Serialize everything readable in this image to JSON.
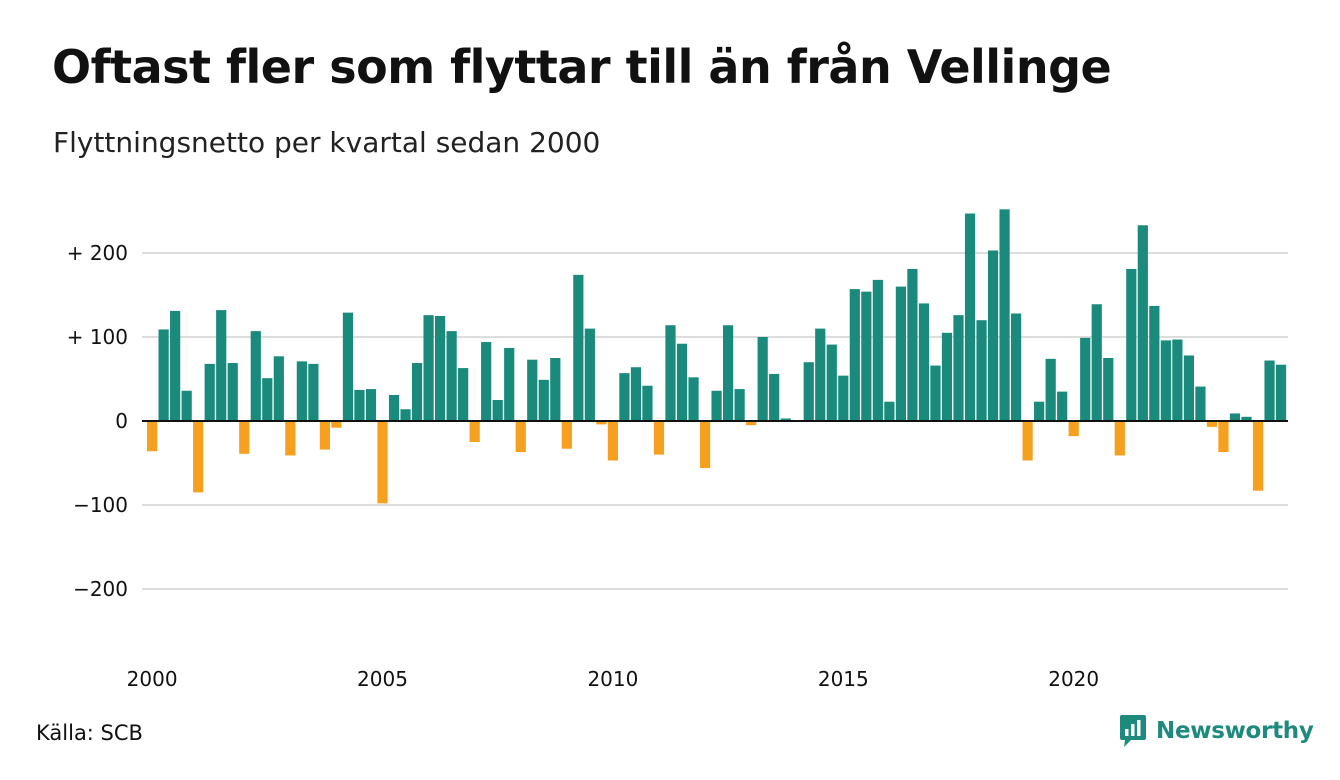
{
  "title": "Oftast fler som flyttar till än från Vellinge",
  "subtitle": "Flyttningsnetto per kvartal sedan 2000",
  "source": "Källa: SCB",
  "brand": {
    "name": "Newsworthy",
    "icon": "newsworthy-logo-icon"
  },
  "colors": {
    "positive": "#1a8a7c",
    "negative": "#f5a01e",
    "grid": "#dddddd",
    "baseline": "#111111",
    "brand": "#1e8a7e"
  },
  "chart_data": {
    "type": "bar",
    "title": "Oftast fler som flyttar till än från Vellinge",
    "subtitle": "Flyttningsnetto per kvartal sedan 2000",
    "x_start_year": 2000,
    "periods_per_year": 4,
    "x_ticks": [
      "2000",
      "2005",
      "2010",
      "2015",
      "2020"
    ],
    "y_ticks": [
      {
        "value": 200,
        "label": "+ 200"
      },
      {
        "value": 100,
        "label": "+ 100"
      },
      {
        "value": 0,
        "label": "0"
      },
      {
        "value": -100,
        "label": "−100"
      },
      {
        "value": -200,
        "label": "−200"
      }
    ],
    "ylim": [
      -280,
      260
    ],
    "grid": true,
    "values": [
      -36,
      109,
      131,
      36,
      -85,
      68,
      132,
      69,
      -39,
      107,
      51,
      77,
      -41,
      71,
      68,
      -34,
      -8,
      129,
      37,
      38,
      -98,
      31,
      14,
      69,
      126,
      125,
      107,
      63,
      -25,
      94,
      25,
      87,
      -37,
      73,
      49,
      75,
      -33,
      174,
      110,
      -4,
      -47,
      57,
      64,
      42,
      -40,
      114,
      92,
      52,
      -56,
      36,
      114,
      38,
      -5,
      100,
      56,
      3,
      0,
      70,
      110,
      91,
      54,
      157,
      154,
      168,
      23,
      160,
      181,
      140,
      66,
      105,
      126,
      247,
      120,
      203,
      252,
      128,
      -47,
      23,
      74,
      35,
      -18,
      99,
      139,
      75,
      -41,
      181,
      233,
      137,
      96,
      97,
      78,
      41,
      -7,
      -37,
      9,
      5,
      -83,
      72,
      67
    ]
  }
}
